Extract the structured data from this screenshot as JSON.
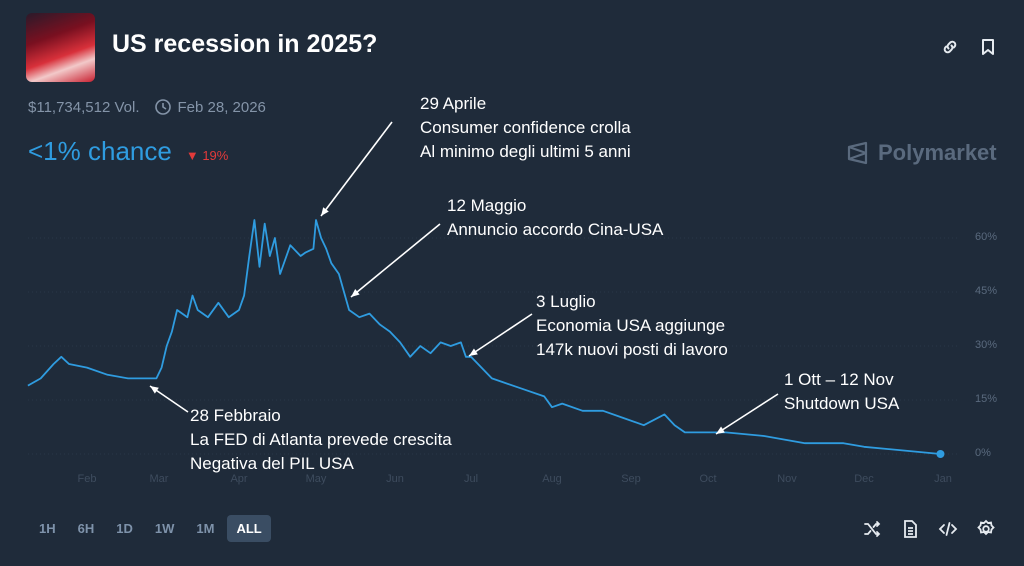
{
  "header": {
    "title": "US recession in 2025?",
    "volume": "$11,734,512 Vol.",
    "end_date": "Feb 28, 2026",
    "chance": "<1% chance",
    "delta": "19%",
    "delta_direction": "down",
    "brand": "Polymarket"
  },
  "icons": {
    "link": "link-icon",
    "bookmark": "bookmark-icon",
    "clock": "clock-icon"
  },
  "colors": {
    "line": "#2f9ce0",
    "chance": "#2f9ce0",
    "delta": "#e23a3a",
    "background": "#1f2b3a"
  },
  "range_buttons": [
    {
      "label": "1H"
    },
    {
      "label": "6H"
    },
    {
      "label": "1D"
    },
    {
      "label": "1W"
    },
    {
      "label": "1M"
    },
    {
      "label": "ALL",
      "active": true
    }
  ],
  "tools": [
    "shuffle-icon",
    "document-icon",
    "code-icon",
    "settings-icon"
  ],
  "annotations": [
    {
      "lines": [
        "29 Aprile",
        "Consumer confidence crolla",
        "Al minimo degli ultimi 5 anni"
      ]
    },
    {
      "lines": [
        "12 Maggio",
        "Annuncio accordo Cina-USA"
      ]
    },
    {
      "lines": [
        "3 Luglio",
        "Economia USA aggiunge",
        "147k nuovi posti di lavoro"
      ]
    },
    {
      "lines": [
        "1 Ott – 12 Nov",
        "Shutdown USA"
      ]
    },
    {
      "lines": [
        "28 Febbraio",
        "La FED di Atlanta prevede crescita",
        "Negativa del PIL USA"
      ]
    }
  ],
  "chart_data": {
    "type": "line",
    "title": "",
    "xlabel": "",
    "ylabel": "",
    "ylim": [
      0,
      65
    ],
    "y_ticks": [
      "0%",
      "15%",
      "30%",
      "45%",
      "60%"
    ],
    "x_ticks": [
      "Feb",
      "Mar",
      "Apr",
      "May",
      "Jun",
      "Jul",
      "Aug",
      "Sep",
      "Oct",
      "Nov",
      "Dec",
      "Jan"
    ],
    "grid": true,
    "series": [
      {
        "color": "#2f9ce0",
        "points": [
          [
            "2025-01-09",
            19
          ],
          [
            "2025-01-14",
            21
          ],
          [
            "2025-01-19",
            25
          ],
          [
            "2025-01-22",
            27
          ],
          [
            "2025-01-25",
            25
          ],
          [
            "2025-02-01",
            24
          ],
          [
            "2025-02-09",
            22
          ],
          [
            "2025-02-17",
            21
          ],
          [
            "2025-02-28",
            21
          ],
          [
            "2025-03-02",
            24
          ],
          [
            "2025-03-04",
            30
          ],
          [
            "2025-03-06",
            34
          ],
          [
            "2025-03-08",
            40
          ],
          [
            "2025-03-12",
            38
          ],
          [
            "2025-03-14",
            44
          ],
          [
            "2025-03-16",
            40
          ],
          [
            "2025-03-20",
            38
          ],
          [
            "2025-03-24",
            42
          ],
          [
            "2025-03-28",
            38
          ],
          [
            "2025-04-01",
            40
          ],
          [
            "2025-04-03",
            44
          ],
          [
            "2025-04-05",
            55
          ],
          [
            "2025-04-07",
            65
          ],
          [
            "2025-04-09",
            52
          ],
          [
            "2025-04-11",
            64
          ],
          [
            "2025-04-13",
            55
          ],
          [
            "2025-04-15",
            60
          ],
          [
            "2025-04-17",
            50
          ],
          [
            "2025-04-21",
            58
          ],
          [
            "2025-04-25",
            55
          ],
          [
            "2025-04-27",
            56
          ],
          [
            "2025-04-30",
            57
          ],
          [
            "2025-05-01",
            65
          ],
          [
            "2025-05-03",
            60
          ],
          [
            "2025-05-05",
            57
          ],
          [
            "2025-05-07",
            53
          ],
          [
            "2025-05-10",
            50
          ],
          [
            "2025-05-12",
            45
          ],
          [
            "2025-05-14",
            40
          ],
          [
            "2025-05-18",
            38
          ],
          [
            "2025-05-22",
            39
          ],
          [
            "2025-05-26",
            36
          ],
          [
            "2025-05-30",
            34
          ],
          [
            "2025-06-03",
            31
          ],
          [
            "2025-06-07",
            27
          ],
          [
            "2025-06-11",
            30
          ],
          [
            "2025-06-15",
            28
          ],
          [
            "2025-06-19",
            31
          ],
          [
            "2025-06-23",
            30
          ],
          [
            "2025-06-27",
            31
          ],
          [
            "2025-06-29",
            27
          ],
          [
            "2025-07-01",
            27
          ],
          [
            "2025-07-05",
            24
          ],
          [
            "2025-07-09",
            21
          ],
          [
            "2025-07-13",
            20
          ],
          [
            "2025-07-21",
            18
          ],
          [
            "2025-07-29",
            16
          ],
          [
            "2025-08-01",
            13
          ],
          [
            "2025-08-05",
            14
          ],
          [
            "2025-08-13",
            12
          ],
          [
            "2025-08-21",
            12
          ],
          [
            "2025-08-29",
            10
          ],
          [
            "2025-09-06",
            8
          ],
          [
            "2025-09-14",
            11
          ],
          [
            "2025-09-18",
            8
          ],
          [
            "2025-09-22",
            6
          ],
          [
            "2025-09-30",
            6
          ],
          [
            "2025-10-08",
            6
          ],
          [
            "2025-10-23",
            5
          ],
          [
            "2025-11-08",
            3
          ],
          [
            "2025-11-23",
            3
          ],
          [
            "2025-12-01",
            2
          ],
          [
            "2025-12-16",
            1
          ],
          [
            "2025-12-31",
            0
          ]
        ]
      }
    ]
  }
}
